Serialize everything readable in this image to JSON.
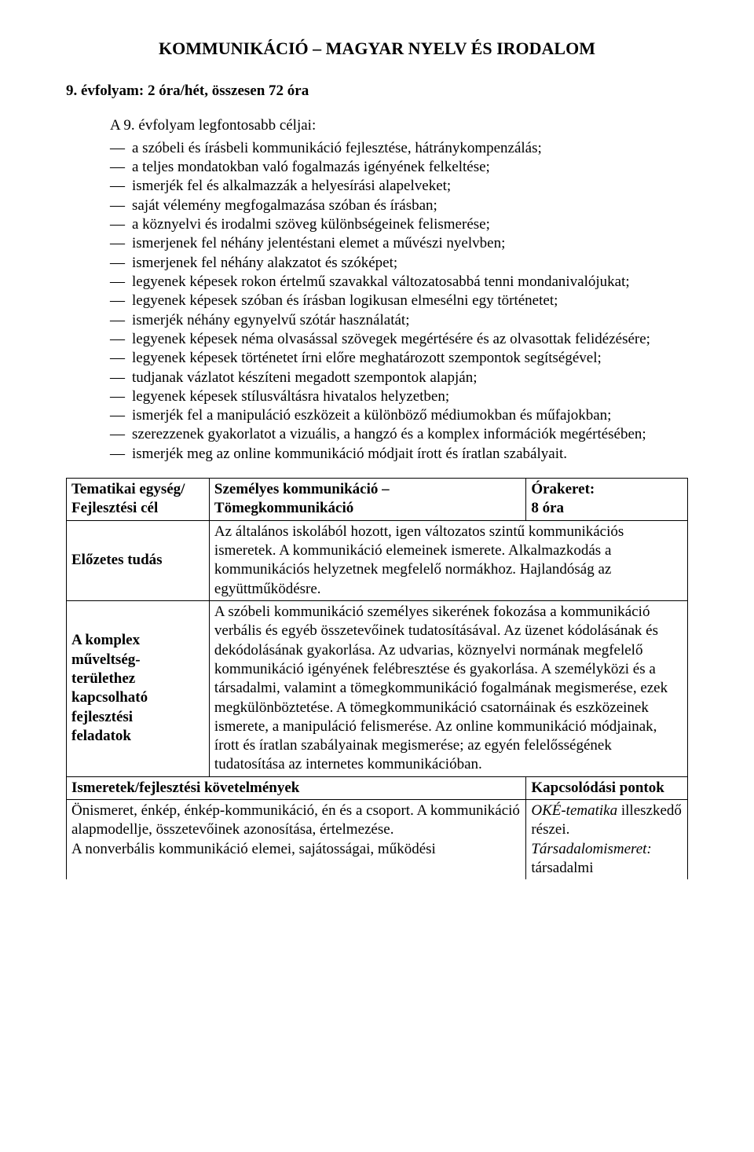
{
  "mainTitle": "KOMMUNIKÁCIÓ – MAGYAR NYELV ÉS IRODALOM",
  "subtitle": "9. évfolyam: 2 óra/hét, összesen 72 óra",
  "intro": "A 9. évfolyam legfontosabb céljai:",
  "goals": [
    "a szóbeli és írásbeli kommunikáció fejlesztése, hátránykompenzálás;",
    "a teljes mondatokban való fogalmazás igényének felkeltése;",
    "ismerjék fel és alkalmazzák a helyesírási alapelveket;",
    "saját vélemény megfogalmazása szóban és írásban;",
    "a köznyelvi és irodalmi szöveg különbségeinek felismerése;",
    "ismerjenek fel néhány jelentéstani elemet a művészi nyelvben;",
    "ismerjenek fel néhány alakzatot és szóképet;",
    "legyenek képesek rokon értelmű szavakkal változatosabbá tenni mondanivalójukat;",
    "legyenek képesek szóban és írásban logikusan elmesélni egy történetet;",
    "ismerjék néhány egynyelvű szótár használatát;",
    "legyenek képesek néma olvasással szövegek megértésére és az olvasottak felidézésére;",
    "legyenek képesek történetet írni előre meghatározott szempontok segítségével;",
    "tudjanak vázlatot készíteni megadott szempontok alapján;",
    "legyenek képesek stílusváltásra hivatalos helyzetben;",
    "ismerjék fel a manipuláció eszközeit a különböző médiumokban és műfajokban;",
    "szerezzenek gyakorlatot a vizuális, a hangzó és a komplex információk megértésében;",
    "ismerjék meg az online kommunikáció módjait írott és íratlan szabályait."
  ],
  "table": {
    "row1": {
      "leftL1": "Tematikai egység/",
      "leftL2": "Fejlesztési cél",
      "mid": "Személyes kommunikáció – Tömegkommunikáció",
      "rightL1": "Órakeret:",
      "rightL2": "8 óra"
    },
    "row2": {
      "left": "Előzetes tudás",
      "right": "Az általános iskolából hozott, igen változatos szintű kommunikációs ismeretek. A kommunikáció elemeinek ismerete. Alkalmazkodás a kommunikációs helyzetnek megfelelő normákhoz. Hajlandóság az együttműködésre."
    },
    "row3": {
      "leftL1": "A komplex",
      "leftL2": "műveltség-",
      "leftL3": "területhez",
      "leftL4": "kapcsolható",
      "leftL5": "fejlesztési",
      "leftL6": "feladatok",
      "right": "A szóbeli kommunikáció személyes sikerének fokozása a kommunikáció verbális és egyéb összetevőinek tudatosításával. Az üzenet kódolásának és dekódolásának gyakorlása. Az udvarias, köznyelvi normának megfelelő kommunikáció igényének felébresztése és gyakorlása. A személyközi és a társadalmi, valamint a tömegkommunikáció fogalmának megismerése, ezek megkülönböztetése. A tömegkommunikáció csatornáinak és eszközeinek ismerete, a manipuláció felismerése. Az online kommunikáció módjainak, írott és íratlan szabályainak megismerése; az egyén felelősségének tudatosítása az internetes kommunikációban."
    },
    "row4": {
      "left": "Ismeretek/fejlesztési követelmények",
      "right": "Kapcsolódási pontok"
    },
    "row5": {
      "left": "Önismeret, énkép, énkép-kommunikáció, én és a csoport. A kommunikáció alapmodellje, összetevőinek azonosítása, értelmezése.\nA nonverbális kommunikáció elemei, sajátosságai, működési",
      "rightItalic1": "OKÉ-tematika ",
      "rightPlain1": "illeszkedő részei.",
      "rightItalic2": "Társadalomismeret: ",
      "rightPlain2": "társadalmi"
    }
  }
}
